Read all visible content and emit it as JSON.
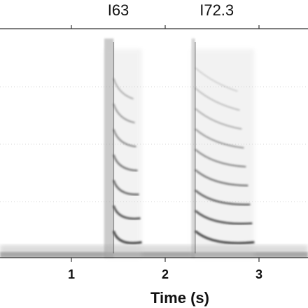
{
  "chart_data": {
    "type": "heatmap",
    "subtype": "spectrogram",
    "colormap": "grayscale",
    "xlabel": "Time (s)",
    "ylabel": "",
    "xlim": [
      0.0,
      3.5
    ],
    "x_ticks": [
      1,
      2,
      3
    ],
    "x_tick_labels": [
      "1",
      "2",
      "3"
    ],
    "grid": "horizontal dotted lines",
    "annotations": [
      {
        "text": "I63",
        "x": 1.5
      },
      {
        "text": "I72.3",
        "x": 2.55
      }
    ],
    "calls": [
      {
        "label": "I63",
        "start": 1.35,
        "end": 1.75,
        "harmonics": 7,
        "stack_end": 1.55,
        "noise_band_end": 1.45
      },
      {
        "label": "I72.3",
        "start": 2.28,
        "end": 2.95,
        "harmonics": 9,
        "stack_end": 2.7,
        "noise_band_end": 2.32
      }
    ]
  }
}
